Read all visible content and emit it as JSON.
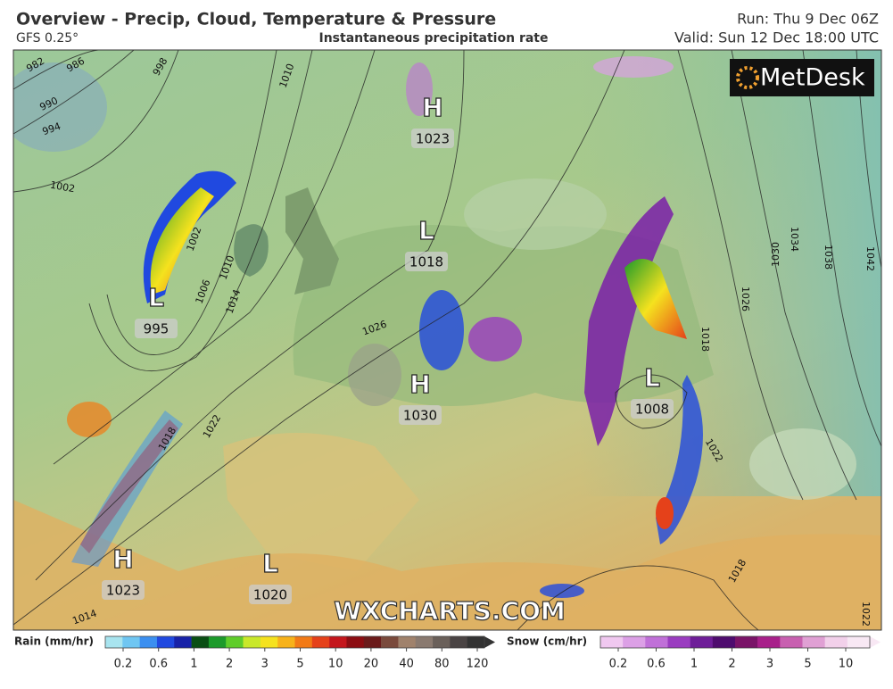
{
  "header": {
    "title": "Overview - Precip, Cloud, Temperature & Pressure",
    "model": "GFS 0.25°",
    "subtitle": "Instantaneous precipitation rate",
    "run": "Run: Thu 9 Dec 06Z",
    "valid": "Valid: Sun 12 Dec 18:00 UTC"
  },
  "logo": "MetDesk",
  "watermark": "WXCHARTS.COM",
  "pressure_centers": [
    {
      "type": "H",
      "value": "1023"
    },
    {
      "type": "L",
      "value": "1018"
    },
    {
      "type": "L",
      "value": "995"
    },
    {
      "type": "H",
      "value": "1030"
    },
    {
      "type": "L",
      "value": "1008"
    },
    {
      "type": "H",
      "value": "1023"
    },
    {
      "type": "L",
      "value": "1020"
    }
  ],
  "isobar_labels": [
    "982",
    "986",
    "990",
    "994",
    "998",
    "1002",
    "1010",
    "1002",
    "1006",
    "1010",
    "1014",
    "1018",
    "1022",
    "1026",
    "1030",
    "1034",
    "1038",
    "1042",
    "1018",
    "1022",
    "1018",
    "1014",
    "1022",
    "1026"
  ],
  "legend": {
    "rain": {
      "label": "Rain (mm/hr)",
      "ticks": [
        0.2,
        0.6,
        1,
        2,
        3,
        5,
        10,
        20,
        40,
        80,
        120
      ],
      "colors": [
        "#a8e4ef",
        "#6fc6f2",
        "#3b8ff0",
        "#2049e0",
        "#1822a8",
        "#0a4e14",
        "#1c9a2a",
        "#5fcd2a",
        "#c9e82a",
        "#f5e21e",
        "#f7b21a",
        "#f27a16",
        "#e5411a",
        "#c4161c",
        "#8c0d12",
        "#6b1b1b",
        "#7a4a3c",
        "#a0826c",
        "#8a7a70",
        "#6a605a",
        "#4a4444",
        "#333333"
      ]
    },
    "snow": {
      "label": "Snow (cm/hr)",
      "ticks": [
        0.2,
        0.6,
        1,
        2,
        3,
        5,
        10
      ],
      "colors": [
        "#f0c8f0",
        "#dca0e6",
        "#c070d8",
        "#9a3cc0",
        "#6e1e98",
        "#4e0c6e",
        "#7a1468",
        "#a8208a",
        "#c860b0",
        "#e0a0d4",
        "#f2d0ea",
        "#f8e8f4"
      ]
    }
  }
}
